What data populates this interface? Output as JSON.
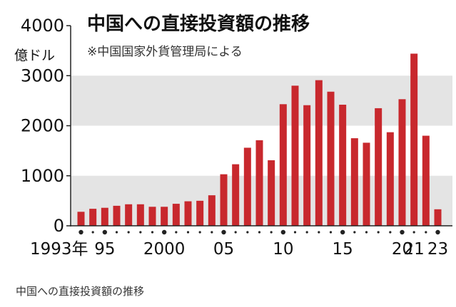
{
  "chart_data": {
    "type": "bar",
    "title": "中国への直接投資額の推移",
    "subtitle": "※中国国家外貨管理局による",
    "ylabel": "億ドル",
    "ylim": [
      0,
      4000
    ],
    "yticks": [
      "0",
      "1000",
      "2000",
      "3000",
      "4000"
    ],
    "x": [
      1993,
      1994,
      1995,
      1996,
      1997,
      1998,
      1999,
      2000,
      2001,
      2002,
      2003,
      2004,
      2005,
      2006,
      2007,
      2008,
      2009,
      2010,
      2011,
      2012,
      2013,
      2014,
      2015,
      2016,
      2017,
      2018,
      2019,
      2020,
      2021,
      2022,
      2023
    ],
    "values": [
      280,
      340,
      360,
      400,
      430,
      430,
      380,
      380,
      440,
      490,
      500,
      610,
      1030,
      1230,
      1560,
      1710,
      1310,
      2430,
      2800,
      2410,
      2910,
      2680,
      2420,
      1750,
      1660,
      2350,
      1870,
      2530,
      3440,
      1800,
      330
    ],
    "xtick_labels": [
      {
        "year": 1993,
        "label": "1993年"
      },
      {
        "year": 1995,
        "label": "95"
      },
      {
        "year": 2000,
        "label": "2000"
      },
      {
        "year": 2005,
        "label": "05"
      },
      {
        "year": 2010,
        "label": "10"
      },
      {
        "year": 2015,
        "label": "15"
      },
      {
        "year": 2020,
        "label": "20"
      },
      {
        "year": 2021,
        "label": "21"
      },
      {
        "year": 2023,
        "label": "23"
      }
    ],
    "bar_color": "#c8282d",
    "band_color": "#e4e4e4",
    "grid": "alternating horizontal bands"
  },
  "caption": "中国への直接投資額の推移"
}
